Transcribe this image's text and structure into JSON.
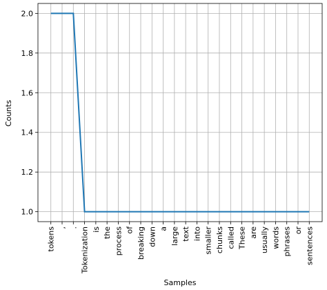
{
  "chart_data": {
    "type": "line",
    "xlabel": "Samples",
    "ylabel": "Counts",
    "categories": [
      "tokens",
      ",",
      ".",
      "Tokenization",
      "is",
      "the",
      "process",
      "of",
      "breaking",
      "down",
      "a",
      "large",
      "text",
      "into",
      "smaller",
      "chunks",
      "called",
      "These",
      "are",
      "usually",
      "words",
      "phrases",
      "or",
      "sentences"
    ],
    "values": [
      2,
      2,
      2,
      1,
      1,
      1,
      1,
      1,
      1,
      1,
      1,
      1,
      1,
      1,
      1,
      1,
      1,
      1,
      1,
      1,
      1,
      1,
      1,
      1
    ],
    "color": "#1f77b4",
    "ylim": [
      0.95,
      2.05
    ],
    "yticks": [
      {
        "value": 1,
        "label": "1.0"
      },
      1.2,
      1.4,
      1.6,
      1.8,
      {
        "value": 2,
        "label": "2.0"
      }
    ],
    "grid": true
  }
}
